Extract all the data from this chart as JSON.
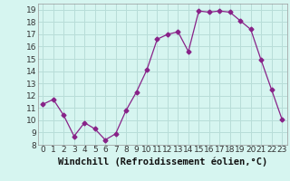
{
  "x": [
    0,
    1,
    2,
    3,
    4,
    5,
    6,
    7,
    8,
    9,
    10,
    11,
    12,
    13,
    14,
    15,
    16,
    17,
    18,
    19,
    20,
    21,
    22,
    23
  ],
  "y": [
    11.3,
    11.7,
    10.4,
    8.7,
    9.8,
    9.3,
    8.4,
    8.9,
    10.8,
    12.3,
    14.1,
    16.6,
    17.0,
    17.2,
    15.6,
    18.9,
    18.8,
    18.9,
    18.8,
    18.1,
    17.4,
    14.9,
    12.5,
    10.1
  ],
  "line_color": "#882288",
  "marker": "D",
  "marker_size": 2.5,
  "bg_color": "#d6f5f0",
  "grid_color": "#b8ddd8",
  "xlabel": "Windchill (Refroidissement éolien,°C)",
  "ylim": [
    8,
    19.5
  ],
  "xlim": [
    -0.5,
    23.5
  ],
  "yticks": [
    8,
    9,
    10,
    11,
    12,
    13,
    14,
    15,
    16,
    17,
    18,
    19
  ],
  "xticks": [
    0,
    1,
    2,
    3,
    4,
    5,
    6,
    7,
    8,
    9,
    10,
    11,
    12,
    13,
    14,
    15,
    16,
    17,
    18,
    19,
    20,
    21,
    22,
    23
  ],
  "tick_label_size": 6.5,
  "xlabel_size": 7.5
}
